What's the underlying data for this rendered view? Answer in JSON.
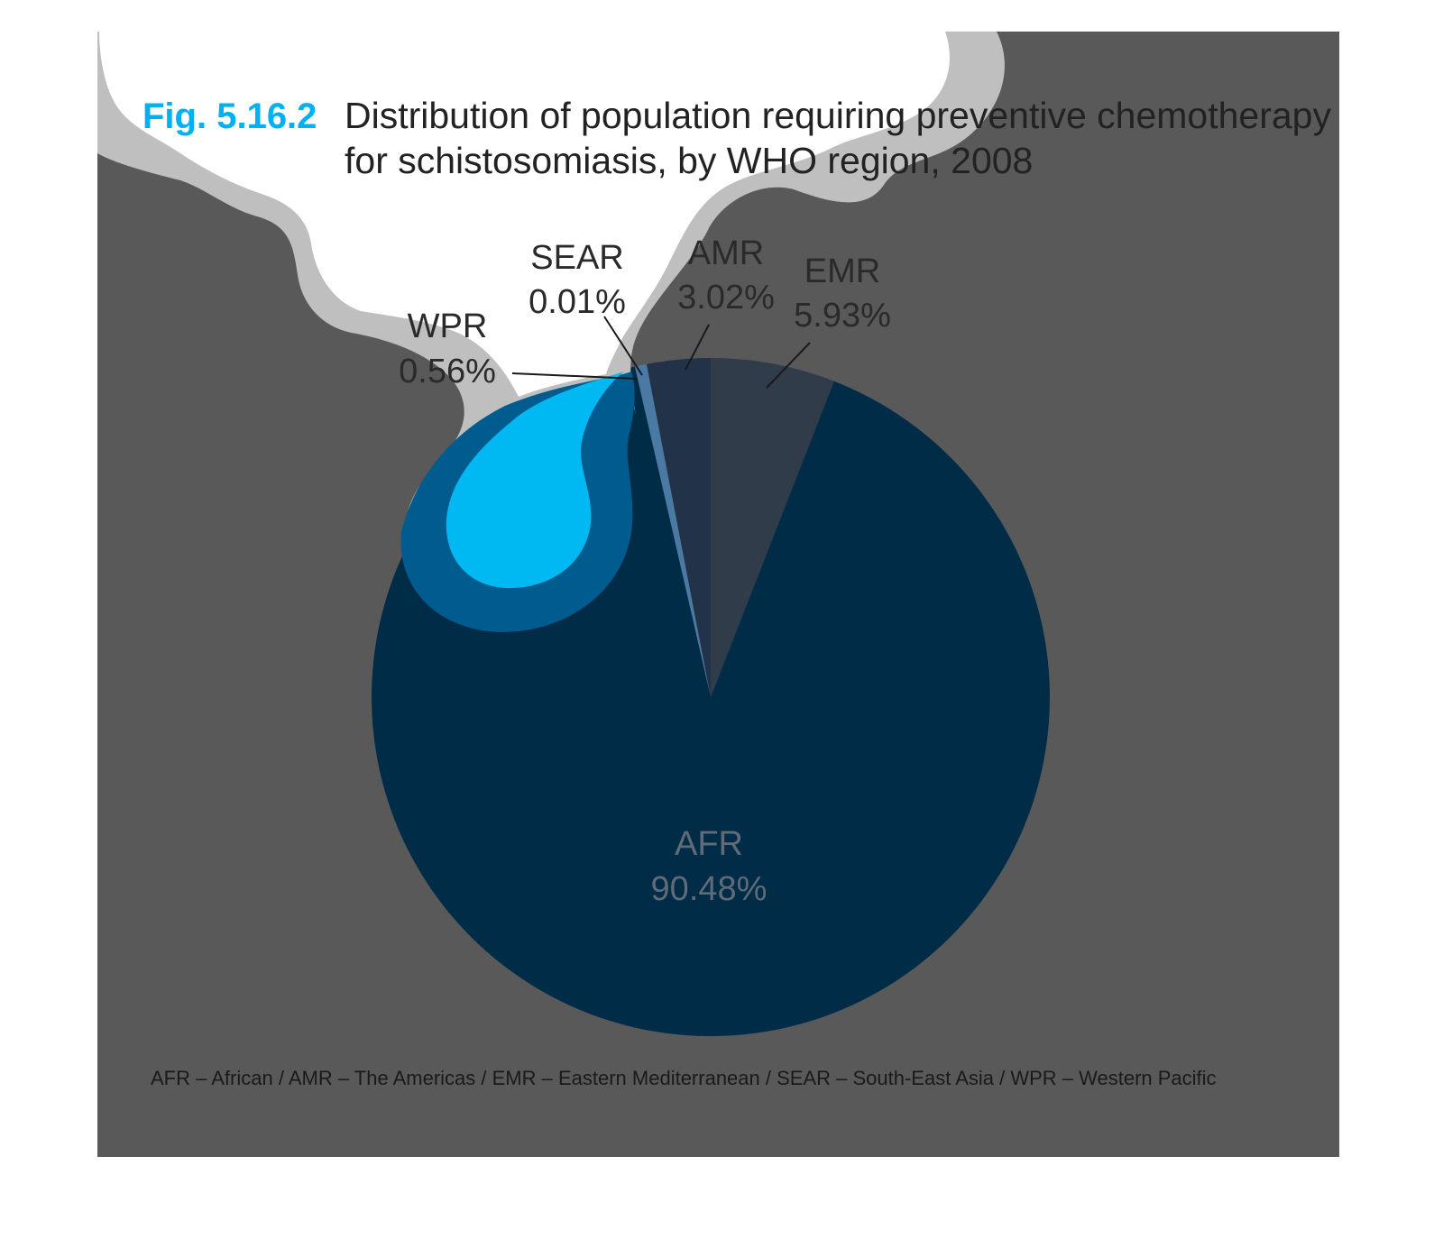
{
  "figure": {
    "number": "Fig. 5.16.2",
    "title_lines": [
      "Distribution of population requiring preventive chemotherapy",
      "for schistosomiasis, by WHO region, 2008"
    ],
    "footnote": "AFR – African / AMR – The Americas / EMR – Eastern Mediterranean / SEAR – South-East Asia / WPR – Western Pacific"
  },
  "colors": {
    "background_panel": "#595959",
    "splash_outer": "#bfbfbf",
    "splash_inner": "#ffffff",
    "drop_dark": "#005b8f",
    "drop_light": "#00b9f2",
    "figure_number": "#00b0f0",
    "title_text": "#222222",
    "afr_label": "#5f6b77"
  },
  "chart_data": {
    "type": "pie",
    "start": "12 o'clock, clockwise",
    "slices": [
      {
        "label": "EMR",
        "value": 5.93,
        "value_label": "5.93%",
        "color": "#303c4a"
      },
      {
        "label": "AFR",
        "value": 90.48,
        "value_label": "90.48%",
        "color": "#002c47"
      },
      {
        "label": "WPR",
        "value": 0.56,
        "value_label": "0.56%",
        "color": "#4a79a3"
      },
      {
        "label": "SEAR",
        "value": 0.01,
        "value_label": "0.01%",
        "color": "#3a3f45"
      },
      {
        "label": "AMR",
        "value": 3.02,
        "value_label": "3.02%",
        "color": "#213249"
      }
    ]
  }
}
